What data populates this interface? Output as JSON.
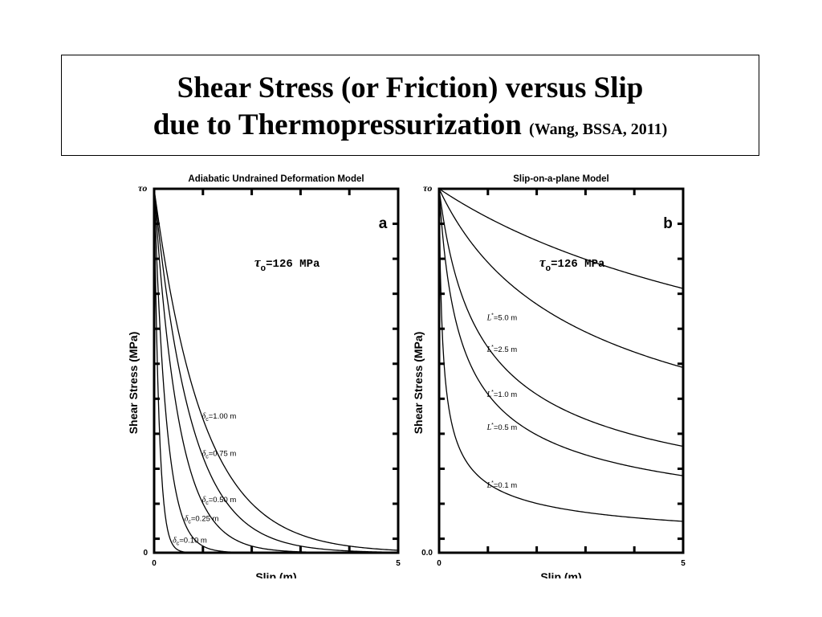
{
  "header": {
    "title_line1": "Shear Stress (or Friction) versus Slip",
    "title_line2": "due to Thermopressurization",
    "citation": "(Wang, BSSA, 2011)"
  },
  "chart_data": [
    {
      "type": "line",
      "panel_letter": "a",
      "title": "Adiabatic Undrained Deformation Model",
      "xlabel": "Slip (m)",
      "ylabel": "Shear Stress (MPa)",
      "xlim": [
        0,
        5
      ],
      "ylim": [
        0,
        126
      ],
      "x_tick_labels": [
        {
          "x": 0,
          "label": "0"
        },
        {
          "x": 5,
          "label": "5"
        }
      ],
      "y_tick_labels": [
        {
          "y": 0,
          "label": "0"
        },
        {
          "y": 126,
          "label": "τo"
        }
      ],
      "annotation": {
        "symbol": "τ",
        "subscript": "o",
        "text": "=126 MPa"
      },
      "series": [
        {
          "label_symbol": "δ",
          "label_sub": "c",
          "label_text": "=0.10 m",
          "param": 0.1,
          "label_x": 0.38,
          "label_y": 3.5
        },
        {
          "label_symbol": "δ",
          "label_sub": "c",
          "label_text": "=0.25 m",
          "param": 0.25,
          "label_x": 0.62,
          "label_y": 11
        },
        {
          "label_symbol": "δ",
          "label_sub": "c",
          "label_text": "=0.50 m",
          "param": 0.5,
          "label_x": 0.98,
          "label_y": 17.5
        },
        {
          "label_symbol": "δ",
          "label_sub": "c",
          "label_text": "=0.75 m",
          "param": 0.75,
          "label_x": 0.98,
          "label_y": 33.5
        },
        {
          "label_symbol": "δ",
          "label_sub": "c",
          "label_text": "=1.00 m",
          "param": 1.0,
          "label_x": 0.98,
          "label_y": 46.5
        }
      ]
    },
    {
      "type": "line",
      "panel_letter": "b",
      "title": "Slip-on-a-plane Model",
      "xlabel": "Slip (m)",
      "ylabel": "Shear Stress (MPa)",
      "xlim": [
        0,
        5
      ],
      "ylim": [
        0,
        126
      ],
      "x_tick_labels": [
        {
          "x": 0,
          "label": "0"
        },
        {
          "x": 5,
          "label": "5"
        }
      ],
      "y_tick_labels": [
        {
          "y": 0,
          "label": "0.0"
        },
        {
          "y": 126,
          "label": "τo"
        }
      ],
      "annotation": {
        "symbol": "τ",
        "subscript": "o",
        "text": "=126 MPa"
      },
      "series": [
        {
          "label_symbol": "L",
          "label_sub": "*",
          "label_text": "=5.0 m",
          "param": 5.0,
          "end_y": 53,
          "label_x": 0.98,
          "label_y": 80.5
        },
        {
          "label_symbol": "L",
          "label_sub": "*",
          "label_text": "=2.5 m",
          "param": 2.5,
          "end_y": 42.5,
          "label_x": 0.98,
          "label_y": 69.5
        },
        {
          "label_symbol": "L",
          "label_sub": "*",
          "label_text": "=1.0 m",
          "param": 1.0,
          "end_y": 28.5,
          "label_x": 0.98,
          "label_y": 54
        },
        {
          "label_symbol": "L",
          "label_sub": "*",
          "label_text": "=0.5 m",
          "param": 0.5,
          "end_y": 22,
          "label_x": 0.98,
          "label_y": 42.5
        },
        {
          "label_symbol": "L",
          "label_sub": "*",
          "label_text": "=0.1 m",
          "param": 0.1,
          "end_y": 10,
          "label_x": 0.98,
          "label_y": 22.5
        }
      ]
    }
  ]
}
